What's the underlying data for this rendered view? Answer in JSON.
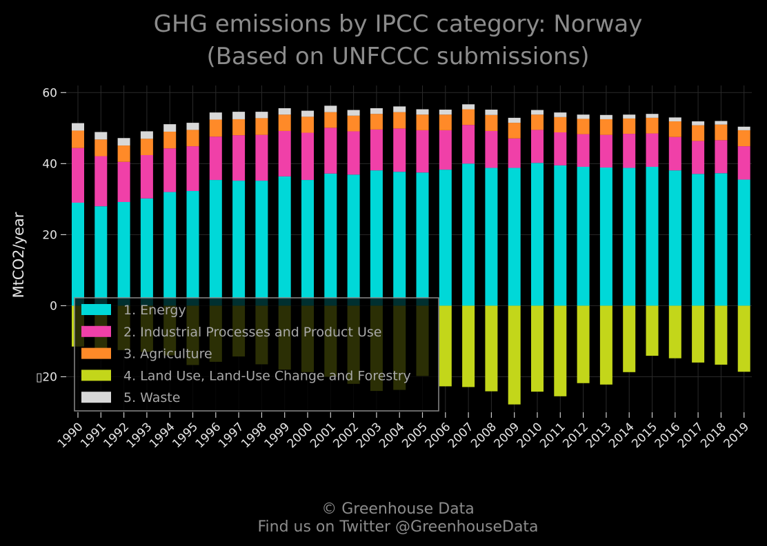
{
  "chart_data": {
    "type": "bar",
    "stacked": true,
    "title": "GHG emissions by IPCC category: Norway",
    "subtitle": "(Based on UNFCCC submissions)",
    "xlabel": "",
    "ylabel": "MtCO2/year",
    "ylim": [
      -30,
      62
    ],
    "yticks": [
      60,
      40,
      20,
      0,
      -20
    ],
    "ytick_labels": [
      "60",
      "40",
      "20",
      "0",
      "▯20"
    ],
    "grid": true,
    "legend_position": "lower-left",
    "categories": [
      "1990",
      "1991",
      "1992",
      "1993",
      "1994",
      "1995",
      "1996",
      "1997",
      "1998",
      "1999",
      "2000",
      "2001",
      "2002",
      "2003",
      "2004",
      "2005",
      "2006",
      "2007",
      "2008",
      "2009",
      "2010",
      "2011",
      "2012",
      "2013",
      "2014",
      "2015",
      "2016",
      "2017",
      "2018",
      "2019"
    ],
    "series": [
      {
        "name": "1. Energy",
        "color": "#00d8d8",
        "values": [
          29.0,
          28.0,
          29.2,
          30.2,
          32.0,
          32.3,
          35.4,
          35.2,
          35.2,
          36.4,
          35.4,
          37.2,
          36.9,
          38.1,
          37.7,
          37.5,
          38.3,
          40.0,
          38.8,
          38.8,
          40.2,
          39.5,
          39.1,
          38.9,
          38.8,
          39.1,
          38.1,
          37.1,
          37.3,
          35.5
        ]
      },
      {
        "name": "2. Industrial Processes and Product Use",
        "color": "#f040a8",
        "values": [
          15.4,
          14.1,
          11.3,
          12.2,
          12.3,
          12.6,
          12.2,
          12.8,
          12.9,
          12.8,
          13.3,
          12.9,
          12.2,
          11.5,
          12.2,
          11.9,
          11.1,
          10.9,
          10.4,
          8.3,
          9.3,
          9.3,
          9.2,
          9.2,
          9.6,
          9.4,
          9.4,
          9.3,
          9.3,
          9.4
        ]
      },
      {
        "name": "3. Agriculture",
        "color": "#ff8a28",
        "values": [
          4.9,
          4.7,
          4.6,
          4.6,
          4.7,
          4.6,
          4.8,
          4.5,
          4.7,
          4.6,
          4.5,
          4.4,
          4.4,
          4.4,
          4.6,
          4.4,
          4.4,
          4.4,
          4.5,
          4.4,
          4.3,
          4.3,
          4.3,
          4.4,
          4.3,
          4.4,
          4.4,
          4.4,
          4.4,
          4.5
        ]
      },
      {
        "name": "4. Land Use, Land-Use Change and Forestry",
        "color": "#c3d61a",
        "values": [
          -11.5,
          -12.0,
          -12.5,
          -13.0,
          -14.0,
          -16.7,
          -15.8,
          -14.3,
          -16.5,
          -18.0,
          -18.7,
          -20.0,
          -22.0,
          -24.0,
          -23.7,
          -19.8,
          -22.7,
          -22.9,
          -24.1,
          -27.8,
          -24.2,
          -25.5,
          -21.8,
          -22.2,
          -18.7,
          -14.1,
          -14.8,
          -16.0,
          -16.6,
          -18.6
        ]
      },
      {
        "name": "5. Waste",
        "color": "#d8d8d8",
        "values": [
          2.1,
          2.1,
          2.1,
          2.1,
          2.1,
          2.0,
          2.0,
          2.1,
          1.8,
          1.8,
          1.7,
          1.8,
          1.6,
          1.6,
          1.6,
          1.5,
          1.4,
          1.4,
          1.5,
          1.4,
          1.3,
          1.3,
          1.2,
          1.2,
          1.1,
          1.1,
          1.1,
          1.1,
          1.0,
          1.0
        ]
      }
    ]
  },
  "credit": {
    "line1": "© Greenhouse Data",
    "line2": "Find us on Twitter @GreenhouseData"
  }
}
